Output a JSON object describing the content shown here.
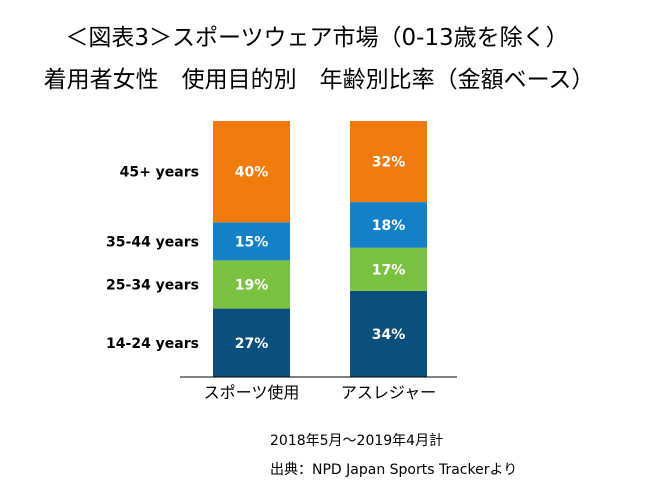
{
  "titles": {
    "line1": "＜図表3＞スポーツウェア市場（0-13歳を除く）",
    "line2": "着用者女性　使用目的別　年齢別比率（金額ベース）"
  },
  "notes": {
    "period": "2018年5月～2019年4月計",
    "source": "出典：NPD Japan Sports Trackerより"
  },
  "chart_data": {
    "type": "bar",
    "stacked": true,
    "percent_stacked": true,
    "categories": [
      "スポーツ使用",
      "アスレジャー"
    ],
    "series": [
      {
        "name": "14-24 years",
        "values": [
          27,
          34
        ],
        "labels": [
          "27%",
          "34%"
        ],
        "color": "#0B4F7C"
      },
      {
        "name": "25-34 years",
        "values": [
          19,
          17
        ],
        "labels": [
          "19%",
          "17%"
        ],
        "color": "#7CC242"
      },
      {
        "name": "35-44 years",
        "values": [
          15,
          18
        ],
        "labels": [
          "15%",
          "18%"
        ],
        "color": "#1480C8"
      },
      {
        "name": "45+ years",
        "values": [
          40,
          32
        ],
        "labels": [
          "40%",
          "32%"
        ],
        "color": "#EE7B0C"
      }
    ],
    "ylim": [
      0,
      101
    ],
    "grid": false,
    "legend": "left"
  }
}
